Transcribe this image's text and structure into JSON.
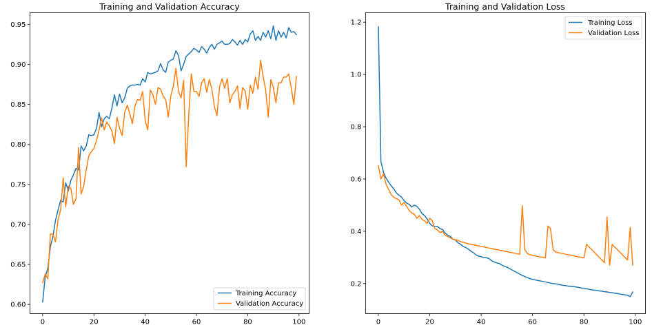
{
  "chart_data": [
    {
      "type": "line",
      "title": "Training and Validation Accuracy",
      "xlabel": "",
      "ylabel": "",
      "xlim": [
        -4.95,
        103.95
      ],
      "ylim": [
        0.5885,
        0.9645
      ],
      "xticks": [
        0,
        20,
        40,
        60,
        80,
        100
      ],
      "xtick_labels": [
        "0",
        "20",
        "40",
        "60",
        "80",
        "100"
      ],
      "yticks": [
        0.6,
        0.65,
        0.7,
        0.75,
        0.8,
        0.85,
        0.9,
        0.95
      ],
      "ytick_labels": [
        "0.60",
        "0.65",
        "0.70",
        "0.75",
        "0.80",
        "0.85",
        "0.90",
        "0.95"
      ],
      "grid": false,
      "legend_position": "lower-right",
      "x": [
        0,
        1,
        2,
        3,
        4,
        5,
        6,
        7,
        8,
        9,
        10,
        11,
        12,
        13,
        14,
        15,
        16,
        17,
        18,
        19,
        20,
        21,
        22,
        23,
        24,
        25,
        26,
        27,
        28,
        29,
        30,
        31,
        32,
        33,
        34,
        35,
        36,
        37,
        38,
        39,
        40,
        41,
        42,
        43,
        44,
        45,
        46,
        47,
        48,
        49,
        50,
        51,
        52,
        53,
        54,
        55,
        56,
        57,
        58,
        59,
        60,
        61,
        62,
        63,
        64,
        65,
        66,
        67,
        68,
        69,
        70,
        71,
        72,
        73,
        74,
        75,
        76,
        77,
        78,
        79,
        80,
        81,
        82,
        83,
        84,
        85,
        86,
        87,
        88,
        89,
        90,
        91,
        92,
        93,
        94,
        95,
        96,
        97,
        98,
        99
      ],
      "series": [
        {
          "name": "Training Accuracy",
          "color": "#1f77b4",
          "values": [
            0.603,
            0.635,
            0.645,
            0.672,
            0.685,
            0.705,
            0.718,
            0.73,
            0.728,
            0.752,
            0.742,
            0.755,
            0.762,
            0.77,
            0.768,
            0.798,
            0.792,
            0.798,
            0.812,
            0.811,
            0.812,
            0.82,
            0.84,
            0.822,
            0.832,
            0.835,
            0.832,
            0.845,
            0.862,
            0.848,
            0.863,
            0.852,
            0.858,
            0.87,
            0.873,
            0.874,
            0.874,
            0.875,
            0.874,
            0.882,
            0.878,
            0.89,
            0.888,
            0.889,
            0.89,
            0.892,
            0.901,
            0.893,
            0.89,
            0.903,
            0.905,
            0.907,
            0.917,
            0.911,
            0.892,
            0.9,
            0.91,
            0.913,
            0.916,
            0.92,
            0.918,
            0.915,
            0.922,
            0.919,
            0.914,
            0.921,
            0.925,
            0.919,
            0.925,
            0.927,
            0.929,
            0.925,
            0.925,
            0.926,
            0.931,
            0.928,
            0.924,
            0.93,
            0.925,
            0.931,
            0.928,
            0.938,
            0.942,
            0.93,
            0.935,
            0.93,
            0.94,
            0.934,
            0.942,
            0.932,
            0.948,
            0.93,
            0.942,
            0.934,
            0.94,
            0.933,
            0.946,
            0.94,
            0.941,
            0.937
          ]
        },
        {
          "name": "Validation Accuracy",
          "color": "#ff7f0e",
          "values": [
            0.627,
            0.638,
            0.632,
            0.688,
            0.688,
            0.678,
            0.706,
            0.718,
            0.758,
            0.722,
            0.748,
            0.745,
            0.725,
            0.732,
            0.796,
            0.738,
            0.748,
            0.768,
            0.786,
            0.791,
            0.795,
            0.805,
            0.818,
            0.833,
            0.818,
            0.828,
            0.823,
            0.817,
            0.801,
            0.834,
            0.82,
            0.811,
            0.84,
            0.849,
            0.838,
            0.826,
            0.848,
            0.856,
            0.855,
            0.866,
            0.83,
            0.818,
            0.868,
            0.862,
            0.85,
            0.871,
            0.869,
            0.86,
            0.856,
            0.834,
            0.861,
            0.873,
            0.895,
            0.866,
            0.858,
            0.88,
            0.772,
            0.837,
            0.888,
            0.866,
            0.866,
            0.86,
            0.877,
            0.882,
            0.865,
            0.881,
            0.869,
            0.847,
            0.836,
            0.872,
            0.882,
            0.87,
            0.882,
            0.852,
            0.862,
            0.866,
            0.873,
            0.845,
            0.871,
            0.867,
            0.844,
            0.874,
            0.864,
            0.884,
            0.869,
            0.905,
            0.885,
            0.868,
            0.834,
            0.881,
            0.871,
            0.852,
            0.877,
            0.877,
            0.884,
            0.884,
            0.888,
            0.87,
            0.85,
            0.885
          ]
        }
      ]
    },
    {
      "type": "line",
      "title": "Training and Validation Loss",
      "xlabel": "",
      "ylabel": "",
      "xlim": [
        -4.95,
        103.95
      ],
      "ylim": [
        0.085,
        1.236
      ],
      "xticks": [
        0,
        20,
        40,
        60,
        80,
        100
      ],
      "xtick_labels": [
        "0",
        "20",
        "40",
        "60",
        "80",
        "100"
      ],
      "yticks": [
        0.2,
        0.4,
        0.6,
        0.8,
        1.0,
        1.2
      ],
      "ytick_labels": [
        "0.2",
        "0.4",
        "0.6",
        "0.8",
        "1.0",
        "1.2"
      ],
      "grid": false,
      "legend_position": "upper-right",
      "x": [
        0,
        1,
        2,
        3,
        4,
        5,
        6,
        7,
        8,
        9,
        10,
        11,
        12,
        13,
        14,
        15,
        16,
        17,
        18,
        19,
        20,
        21,
        22,
        23,
        24,
        25,
        26,
        27,
        28,
        29,
        30,
        31,
        32,
        33,
        34,
        35,
        36,
        37,
        38,
        39,
        40,
        41,
        42,
        43,
        44,
        45,
        46,
        47,
        48,
        49,
        50,
        51,
        52,
        53,
        54,
        55,
        56,
        57,
        58,
        59,
        60,
        61,
        62,
        63,
        64,
        65,
        66,
        67,
        68,
        69,
        70,
        71,
        72,
        73,
        74,
        75,
        76,
        77,
        78,
        79,
        80,
        81,
        82,
        83,
        84,
        85,
        86,
        87,
        88,
        89,
        90,
        91,
        92,
        93,
        94,
        95,
        96,
        97,
        98,
        99
      ],
      "series": [
        {
          "name": "Training Loss",
          "color": "#1f77b4",
          "values": [
            1.183,
            0.667,
            0.625,
            0.603,
            0.588,
            0.574,
            0.562,
            0.547,
            0.538,
            0.531,
            0.517,
            0.508,
            0.503,
            0.493,
            0.5,
            0.495,
            0.484,
            0.468,
            0.46,
            0.447,
            0.43,
            0.421,
            0.419,
            0.418,
            0.41,
            0.407,
            0.393,
            0.385,
            0.38,
            0.37,
            0.367,
            0.356,
            0.35,
            0.342,
            0.338,
            0.332,
            0.324,
            0.318,
            0.31,
            0.305,
            0.303,
            0.3,
            0.299,
            0.296,
            0.288,
            0.283,
            0.279,
            0.277,
            0.271,
            0.266,
            0.263,
            0.258,
            0.252,
            0.247,
            0.242,
            0.236,
            0.231,
            0.227,
            0.223,
            0.219,
            0.216,
            0.214,
            0.212,
            0.21,
            0.208,
            0.206,
            0.204,
            0.202,
            0.2,
            0.199,
            0.197,
            0.195,
            0.193,
            0.192,
            0.19,
            0.189,
            0.188,
            0.187,
            0.185,
            0.183,
            0.182,
            0.18,
            0.178,
            0.176,
            0.175,
            0.174,
            0.172,
            0.171,
            0.169,
            0.168,
            0.166,
            0.165,
            0.163,
            0.162,
            0.16,
            0.158,
            0.157,
            0.155,
            0.15,
            0.168
          ]
        },
        {
          "name": "Validation Loss",
          "color": "#ff7f0e",
          "values": [
            0.652,
            0.6,
            0.62,
            0.58,
            0.56,
            0.54,
            0.53,
            0.525,
            0.52,
            0.5,
            0.51,
            0.495,
            0.48,
            0.47,
            0.465,
            0.45,
            0.46,
            0.445,
            0.44,
            0.43,
            0.45,
            0.44,
            0.41,
            0.405,
            0.395,
            0.4,
            0.385,
            0.38,
            0.375,
            0.37,
            0.368,
            0.365,
            0.36,
            0.358,
            0.355,
            0.352,
            0.35,
            0.348,
            0.346,
            0.344,
            0.342,
            0.34,
            0.338,
            0.336,
            0.334,
            0.332,
            0.33,
            0.328,
            0.326,
            0.324,
            0.322,
            0.32,
            0.318,
            0.316,
            0.314,
            0.312,
            0.498,
            0.33,
            0.315,
            0.31,
            0.308,
            0.306,
            0.304,
            0.302,
            0.3,
            0.298,
            0.42,
            0.41,
            0.33,
            0.32,
            0.318,
            0.316,
            0.314,
            0.312,
            0.31,
            0.308,
            0.306,
            0.304,
            0.302,
            0.3,
            0.298,
            0.35,
            0.34,
            0.33,
            0.32,
            0.31,
            0.3,
            0.29,
            0.28,
            0.455,
            0.27,
            0.35,
            0.34,
            0.33,
            0.32,
            0.31,
            0.3,
            0.29,
            0.415,
            0.27
          ]
        }
      ]
    }
  ]
}
